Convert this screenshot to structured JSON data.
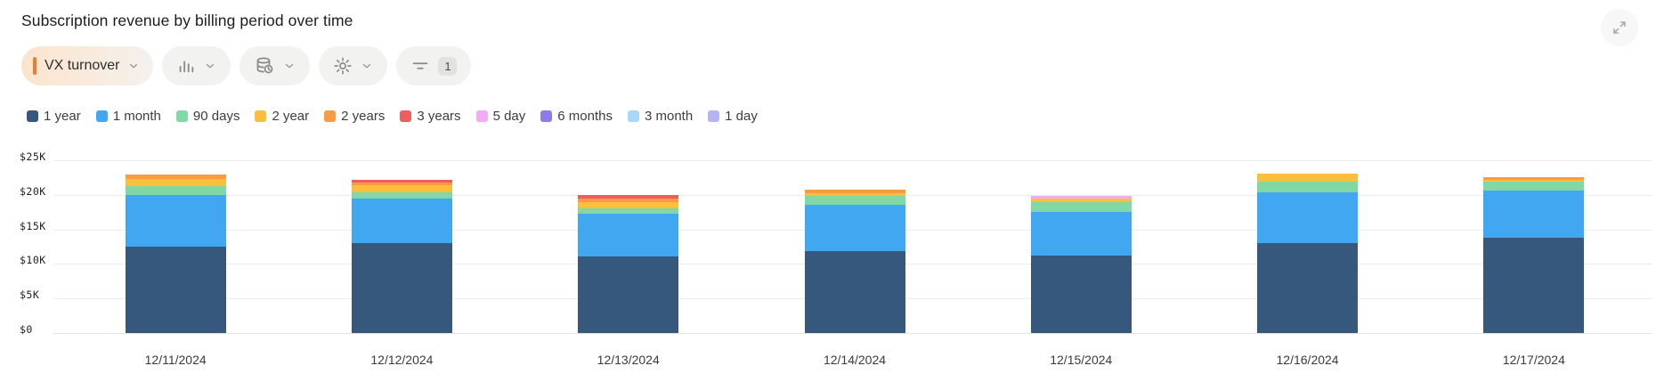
{
  "header": {
    "title": "Subscription revenue by billing period over time"
  },
  "toolbar": {
    "metric_label": "VX turnover",
    "metric_accent_color": "#ee7d32",
    "filter_badge": "1",
    "icons": [
      "column-chart-icon",
      "database-clock-icon",
      "gear-icon",
      "filter-icon"
    ]
  },
  "expand_button": {
    "icon": "expand-arrows-icon"
  },
  "chart_data": {
    "type": "bar",
    "stacked": true,
    "title": "Subscription revenue by billing period over time",
    "categories": [
      "12/11/2024",
      "12/12/2024",
      "12/13/2024",
      "12/14/2024",
      "12/15/2024",
      "12/16/2024",
      "12/17/2024"
    ],
    "unit": "USD thousands",
    "ylim": [
      0,
      25
    ],
    "yticks": [
      {
        "label": "$0",
        "value": 0
      },
      {
        "label": "$5K",
        "value": 5
      },
      {
        "label": "$10K",
        "value": 10
      },
      {
        "label": "$15K",
        "value": 15
      },
      {
        "label": "$20K",
        "value": 20
      },
      {
        "label": "$25K",
        "value": 25
      }
    ],
    "legend_position": "top-left",
    "grid": true,
    "series": [
      {
        "name": "1 year",
        "color": "#35587c",
        "values": [
          12.5,
          13.0,
          11.1,
          11.8,
          11.2,
          13.0,
          13.8
        ]
      },
      {
        "name": "1 month",
        "color": "#40a7f0",
        "values": [
          7.5,
          6.5,
          6.2,
          6.8,
          6.3,
          7.4,
          6.8
        ]
      },
      {
        "name": "90 days",
        "color": "#81d8a4",
        "values": [
          1.3,
          0.9,
          0.8,
          1.2,
          1.4,
          1.5,
          1.3
        ]
      },
      {
        "name": "2 year",
        "color": "#fcbf3b",
        "values": [
          1.0,
          1.0,
          0.8,
          0.4,
          0.5,
          1.2,
          0.3
        ]
      },
      {
        "name": "2 years",
        "color": "#fb9a44",
        "values": [
          0.7,
          0.4,
          0.6,
          0.5,
          0,
          0,
          0.3
        ]
      },
      {
        "name": "3 years",
        "color": "#ef5e5e",
        "values": [
          0,
          0.4,
          0.5,
          0,
          0,
          0,
          0
        ]
      },
      {
        "name": "5 day",
        "color": "#f2acf4",
        "values": [
          0,
          0,
          0,
          0,
          0.4,
          0,
          0
        ]
      },
      {
        "name": "6 months",
        "color": "#8f7be8",
        "values": [
          0,
          0,
          0,
          0,
          0,
          0,
          0
        ]
      },
      {
        "name": "3 month",
        "color": "#a9d7f7",
        "values": [
          0,
          0,
          0,
          0,
          0,
          0,
          0
        ]
      },
      {
        "name": "1 day",
        "color": "#b5b3f3",
        "values": [
          0,
          0,
          0,
          0,
          0,
          0,
          0
        ]
      }
    ]
  }
}
